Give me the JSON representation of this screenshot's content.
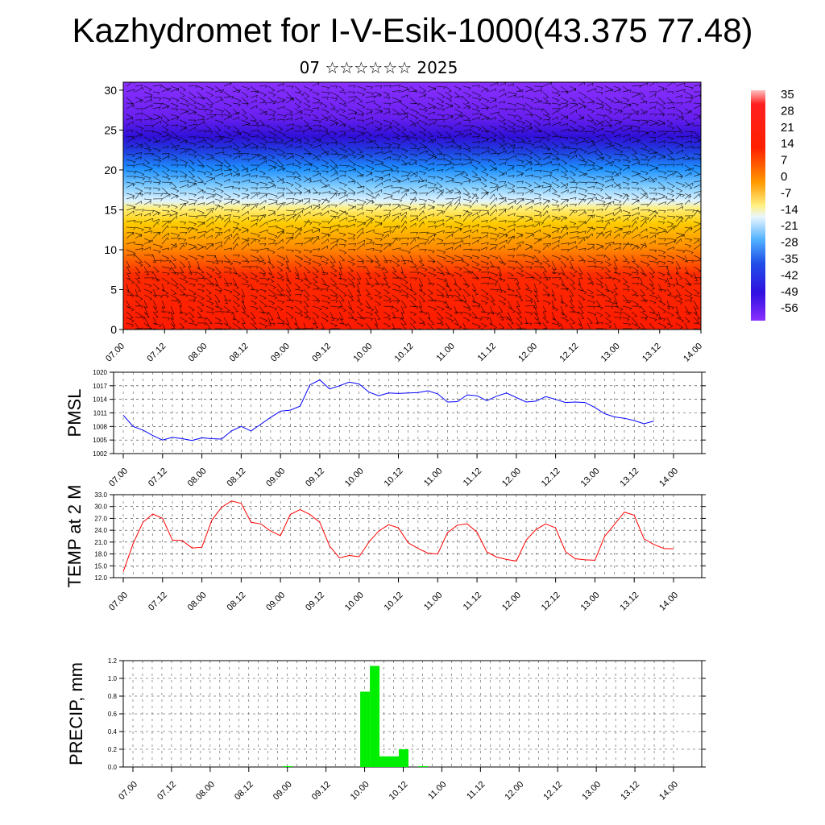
{
  "title": "Kazhydromet for I-V-Esik-1000(43.375 77.48)",
  "subtitle": "07 ☆☆☆☆☆☆ 2025",
  "time_labels": [
    "07.00",
    "07.12",
    "08.00",
    "08.12",
    "09.00",
    "09.12",
    "10.00",
    "10.12",
    "11.00",
    "11.12",
    "12.00",
    "12.12",
    "13.00",
    "13.12",
    "14.00"
  ],
  "chart_data": [
    {
      "type": "heatmap",
      "ylim": [
        0,
        31
      ],
      "yticks": [
        0,
        5,
        10,
        15,
        20,
        25,
        30
      ],
      "colorbar_labels": [
        "35",
        "28",
        "21",
        "14",
        "7",
        "0",
        "-7",
        "-14",
        "-21",
        "-28",
        "-35",
        "-42",
        "-49",
        "-56"
      ],
      "colors": [
        "#ff0000",
        "#ff8c00",
        "#ffe000",
        "#ffff99",
        "#a0dcff",
        "#1e90ff",
        "#3010f0",
        "#8020ff"
      ]
    },
    {
      "type": "line",
      "ylabel": "PMSL",
      "ylim": [
        1002,
        1020
      ],
      "yticks": [
        "1002",
        "1005",
        "1008",
        "1011",
        "1014",
        "1017",
        "1020"
      ],
      "color": "#0000ff",
      "values": [
        1010.5,
        1008,
        1007.2,
        1006,
        1005,
        1005.6,
        1005.3,
        1004.9,
        1005.5,
        1005.3,
        1005.2,
        1007,
        1008,
        1007,
        1008.5,
        1010,
        1011.4,
        1011.6,
        1012.5,
        1017.2,
        1018.3,
        1016.3,
        1017,
        1017.8,
        1017.4,
        1015.6,
        1014.8,
        1015.4,
        1015.3,
        1015.4,
        1015.5,
        1015.9,
        1015.2,
        1013.4,
        1013.5,
        1015,
        1014.8,
        1013.7,
        1014.7,
        1015.4,
        1014.4,
        1013.4,
        1013.6,
        1014.6,
        1014,
        1013.3,
        1013.4,
        1013.3,
        1012.2,
        1010.8,
        1010.1,
        1009.8,
        1009.3,
        1008.6,
        1009.2
      ],
      "color_line": "#0000ff"
    },
    {
      "type": "line",
      "ylabel": "TEMP at 2 M",
      "ylim": [
        12,
        33
      ],
      "yticks": [
        "12.0",
        "15.0",
        "18.0",
        "21.0",
        "24.0",
        "27.0",
        "30.0",
        "33.0"
      ],
      "color": "#ff0000",
      "values": [
        13.5,
        20.6,
        26,
        28.1,
        27,
        21.5,
        21.4,
        19.5,
        19.7,
        26.5,
        29.8,
        31.4,
        30.8,
        26,
        25.6,
        23.8,
        22.6,
        28,
        29.2,
        28,
        26,
        20,
        17,
        17.6,
        17.3,
        21,
        23.8,
        25.4,
        24.6,
        20.8,
        19.4,
        18.2,
        18,
        23.4,
        25.3,
        25.6,
        23.5,
        18.5,
        17.2,
        16.6,
        16.2,
        21.5,
        24.2,
        25.6,
        24.6,
        18.6,
        16.8,
        16.5,
        16.4,
        22.5,
        25.5,
        28.6,
        27.8,
        21.8,
        20.4,
        19.4,
        19.3
      ]
    },
    {
      "type": "bar",
      "ylabel": "PRECIP, mm",
      "ylim": [
        0,
        1.2
      ],
      "yticks": [
        "0.0",
        "0.2",
        "0.4",
        "0.6",
        "0.8",
        "1.0",
        "1.2"
      ],
      "color": "#00ee00",
      "values": [
        0,
        0,
        0,
        0,
        0,
        0,
        0,
        0,
        0,
        0,
        0,
        0,
        0,
        0,
        0,
        0,
        0.01,
        0,
        0,
        0,
        0,
        0,
        0,
        0,
        0.85,
        1.14,
        0.12,
        0.12,
        0.2,
        0,
        0.01,
        0,
        0,
        0,
        0,
        0,
        0,
        0,
        0,
        0,
        0,
        0,
        0,
        0,
        0,
        0,
        0,
        0,
        0,
        0,
        0,
        0,
        0,
        0,
        0,
        0
      ]
    }
  ]
}
